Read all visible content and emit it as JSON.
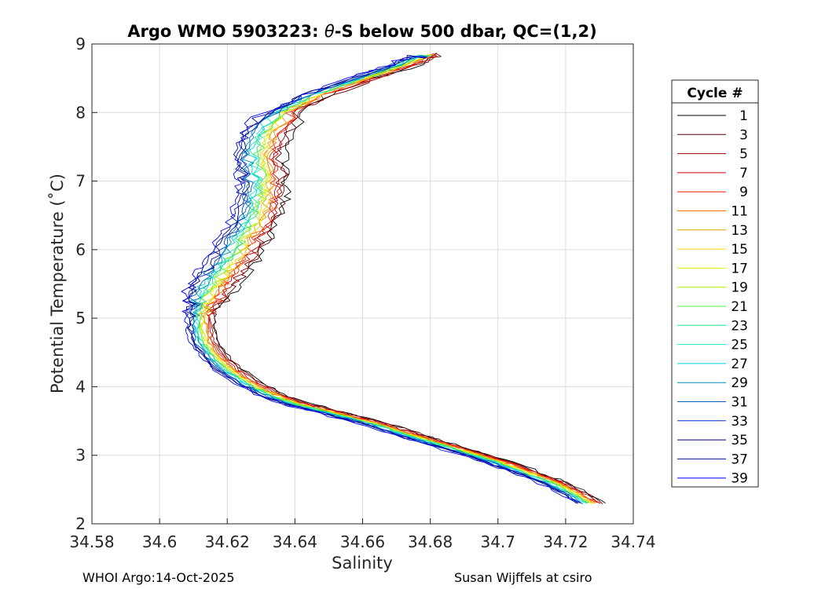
{
  "chart_data": {
    "type": "line",
    "title_prefix": "Argo WMO 5903223: ",
    "title_symbol": "θ",
    "title_suffix": "-S below 500 dbar,  QC=(1,2)",
    "xlabel": "Salinity",
    "ylabel": "Potential Temperature (˚C)",
    "xlim": [
      34.58,
      34.74
    ],
    "ylim": [
      2,
      9
    ],
    "x_ticks": [
      "34.58",
      "34.6",
      "34.62",
      "34.64",
      "34.66",
      "34.68",
      "34.7",
      "34.72",
      "34.74"
    ],
    "y_ticks": [
      "2",
      "3",
      "4",
      "5",
      "6",
      "7",
      "8",
      "9"
    ],
    "grid": true,
    "legend_title": "Cycle #",
    "legend_position": "right",
    "mean_profile": {
      "salinity": [
        34.727,
        34.722,
        34.716,
        34.708,
        34.7,
        34.69,
        34.68,
        34.672,
        34.664,
        34.656,
        34.648,
        34.64,
        34.632,
        34.626,
        34.62,
        34.616,
        34.613,
        34.612,
        34.612,
        34.613,
        34.615,
        34.618,
        34.621,
        34.624,
        34.627,
        34.629,
        34.63,
        34.63,
        34.629,
        34.631,
        34.636,
        34.646,
        34.66,
        34.672,
        34.68
      ],
      "theta": [
        2.3,
        2.45,
        2.6,
        2.75,
        2.9,
        3.05,
        3.2,
        3.32,
        3.45,
        3.55,
        3.65,
        3.75,
        3.9,
        4.05,
        4.25,
        4.45,
        4.65,
        4.85,
        5.05,
        5.25,
        5.45,
        5.65,
        5.85,
        6.1,
        6.35,
        6.6,
        6.85,
        7.1,
        7.4,
        7.7,
        8.0,
        8.25,
        8.5,
        8.7,
        8.87
      ]
    },
    "series": [
      {
        "name": "1",
        "color": "#000000",
        "s_offset": 0.0045
      },
      {
        "name": "3",
        "color": "#5a0000",
        "s_offset": 0.004
      },
      {
        "name": "5",
        "color": "#a00000",
        "s_offset": 0.0034
      },
      {
        "name": "7",
        "color": "#d90000",
        "s_offset": 0.0028
      },
      {
        "name": "9",
        "color": "#ff2000",
        "s_offset": 0.0022
      },
      {
        "name": "11",
        "color": "#ff6a00",
        "s_offset": 0.0018
      },
      {
        "name": "13",
        "color": "#e0a000",
        "s_offset": 0.0014
      },
      {
        "name": "15",
        "color": "#ffd000",
        "s_offset": 0.001
      },
      {
        "name": "17",
        "color": "#e6f000",
        "s_offset": 0.0006
      },
      {
        "name": "19",
        "color": "#aaf000",
        "s_offset": 0.0002
      },
      {
        "name": "21",
        "color": "#50f040",
        "s_offset": -0.0002
      },
      {
        "name": "23",
        "color": "#20e090",
        "s_offset": -0.0006
      },
      {
        "name": "25",
        "color": "#20e8d0",
        "s_offset": -0.001
      },
      {
        "name": "27",
        "color": "#00d0e0",
        "s_offset": -0.0014
      },
      {
        "name": "29",
        "color": "#0090b0",
        "s_offset": -0.0018
      },
      {
        "name": "31",
        "color": "#0060c0",
        "s_offset": -0.0022
      },
      {
        "name": "33",
        "color": "#0030d0",
        "s_offset": -0.0026
      },
      {
        "name": "35",
        "color": "#000080",
        "s_offset": -0.003
      },
      {
        "name": "37",
        "color": "#0010a0",
        "s_offset": -0.0034
      },
      {
        "name": "39",
        "color": "#0000ff",
        "s_offset": -0.004
      }
    ]
  },
  "footer": {
    "left": "WHOI Argo:14-Oct-2025",
    "right": "Susan Wijffels at csiro"
  }
}
